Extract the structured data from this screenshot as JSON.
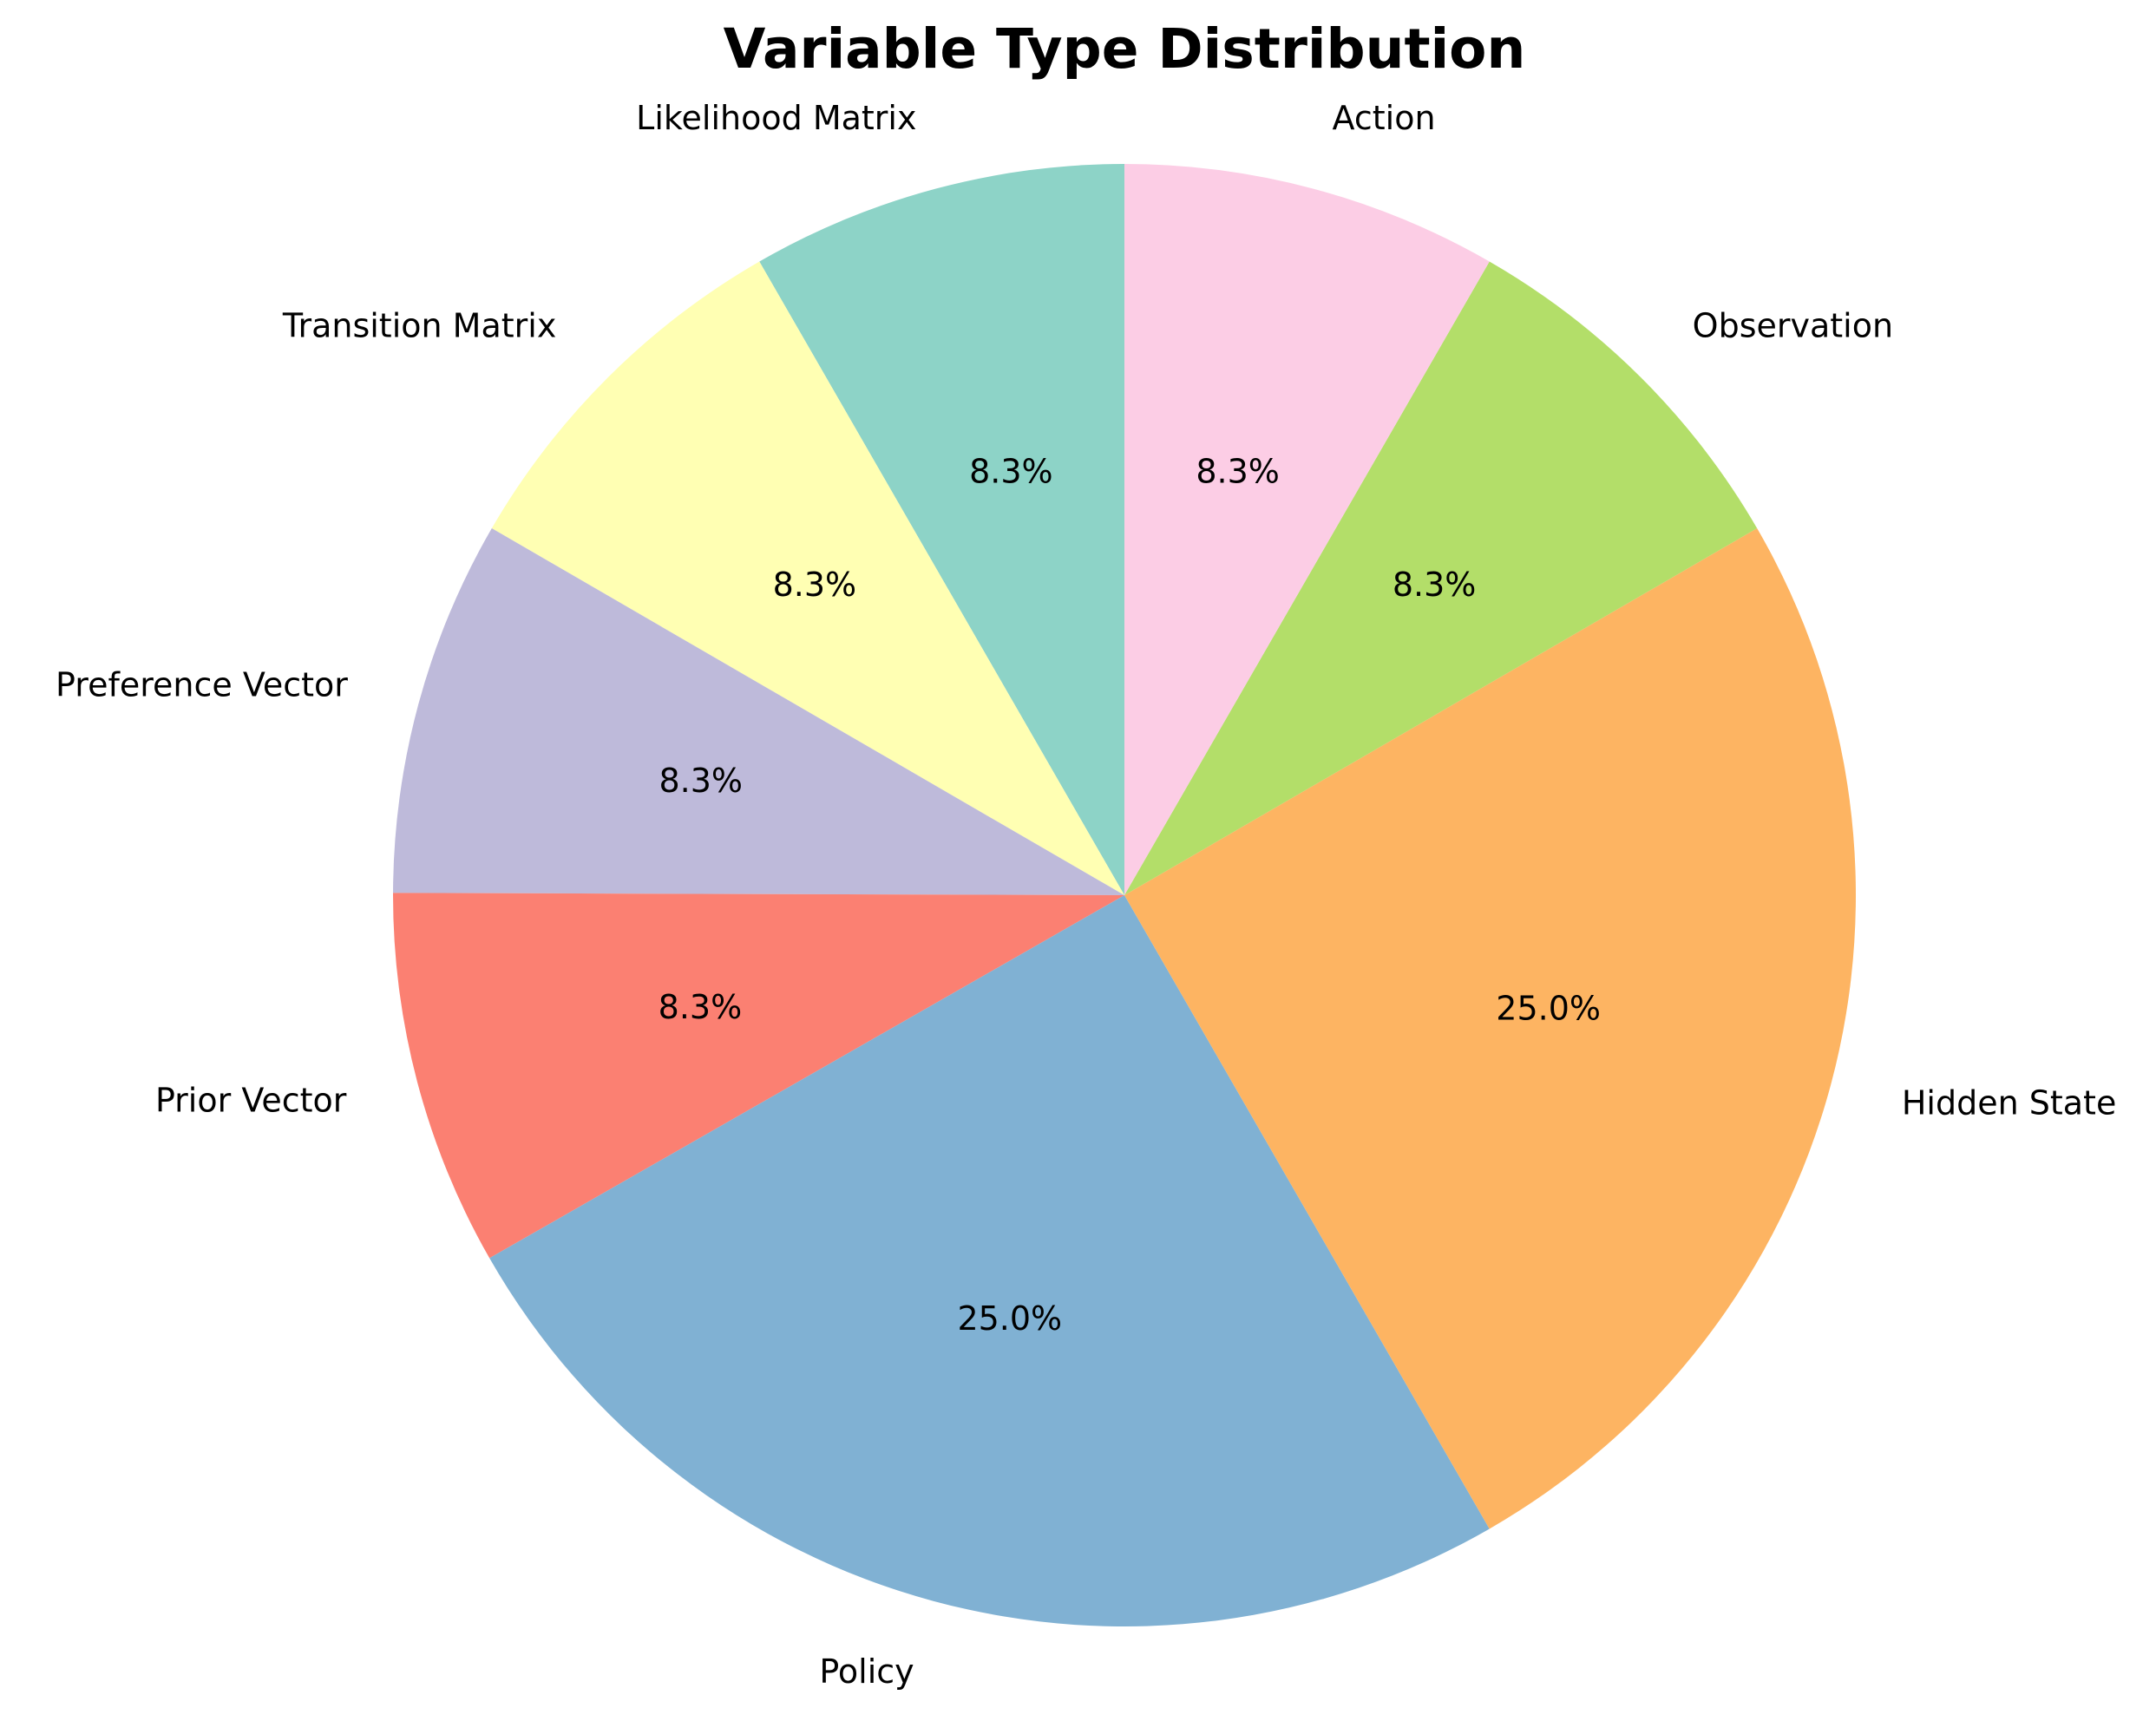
{
  "chart_data": {
    "type": "pie",
    "title": "Variable Type Distribution",
    "start_angle_deg": 90,
    "direction": "counterclockwise",
    "slices": [
      {
        "label": "Likelihood Matrix",
        "value": 8.3,
        "pct_text": "8.3%",
        "color": "#8dd3c7"
      },
      {
        "label": "Transition Matrix",
        "value": 8.3,
        "pct_text": "8.3%",
        "color": "#ffffb3"
      },
      {
        "label": "Preference Vector",
        "value": 8.3,
        "pct_text": "8.3%",
        "color": "#bebada"
      },
      {
        "label": "Prior Vector",
        "value": 8.3,
        "pct_text": "8.3%",
        "color": "#fb8072"
      },
      {
        "label": "Policy",
        "value": 25.0,
        "pct_text": "25.0%",
        "color": "#80b1d3"
      },
      {
        "label": "Hidden State",
        "value": 25.0,
        "pct_text": "25.0%",
        "color": "#fdb462"
      },
      {
        "label": "Observation",
        "value": 8.3,
        "pct_text": "8.3%",
        "color": "#b3de69"
      },
      {
        "label": "Action",
        "value": 8.3,
        "pct_text": "8.3%",
        "color": "#fccde5"
      }
    ]
  }
}
